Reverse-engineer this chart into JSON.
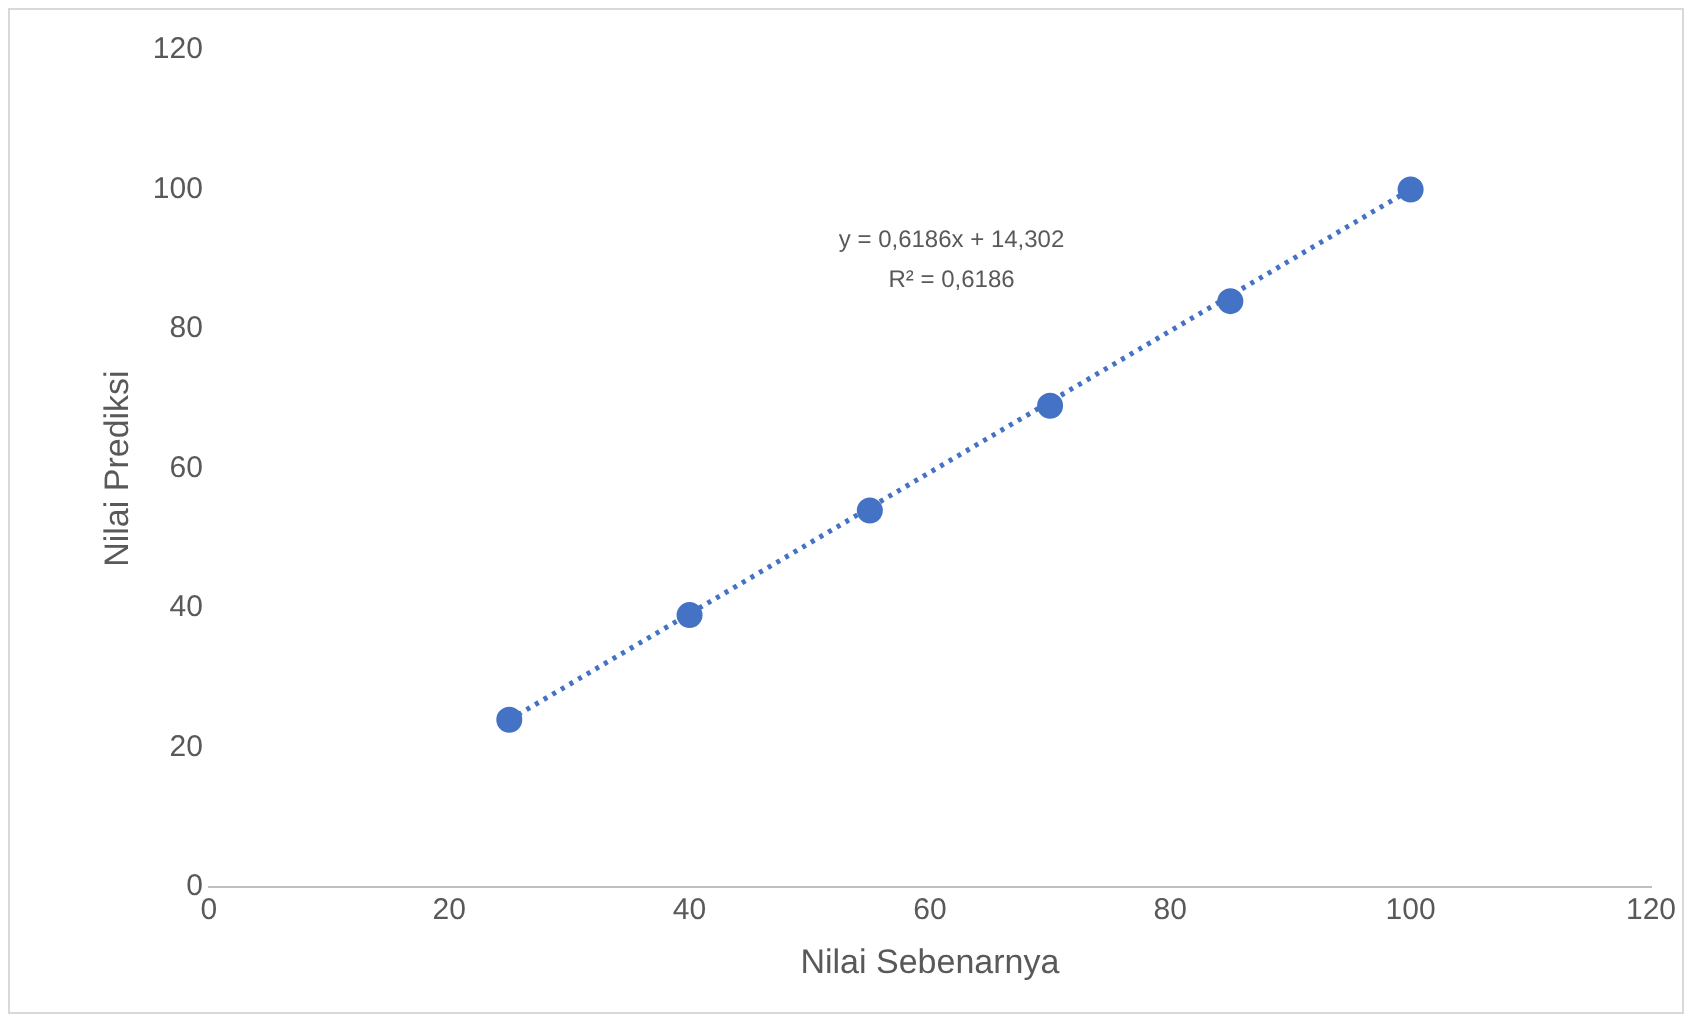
{
  "chart_data": {
    "type": "scatter",
    "xlabel": "Nilai Sebenarnya",
    "ylabel": "Nilai Prediksi",
    "annotations": [
      "y = 0,6186x + 14,302",
      "R² = 0,6186"
    ],
    "series": [
      {
        "color": "#4472c4",
        "x": [
          25,
          40,
          55,
          70,
          85,
          100
        ],
        "values": [
          24,
          39,
          54,
          69,
          84,
          100
        ],
        "marker": "circle"
      },
      {
        "type": "line",
        "color": "#4472c4",
        "x": [
          25,
          100
        ],
        "values": [
          24,
          100
        ],
        "line_style": "dotted",
        "marker": "none"
      }
    ],
    "xlim": [
      0,
      120
    ],
    "xticks": [
      0,
      20,
      40,
      60,
      80,
      100,
      120
    ],
    "ylim": [
      0,
      120
    ],
    "yticks": [
      0,
      20,
      40,
      60,
      80,
      100,
      120
    ],
    "grid": false,
    "legend": false
  }
}
